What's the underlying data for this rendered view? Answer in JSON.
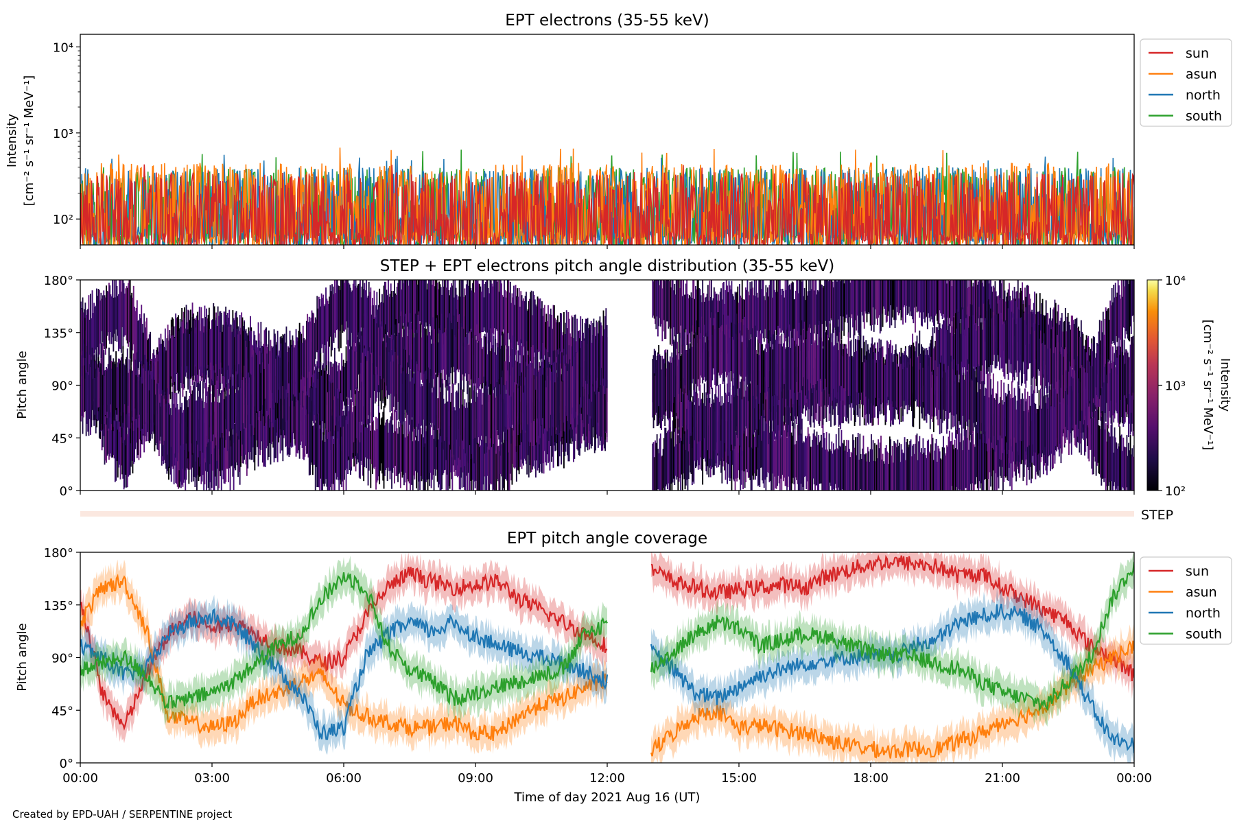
{
  "footer": "Created by EPD-UAH / SERPENTINE project",
  "colors": {
    "sun": "#d62728",
    "asun": "#ff7f0e",
    "north": "#1f77b4",
    "south": "#2ca02c",
    "step": "#fbe8e0"
  },
  "panels": {
    "intensity": {
      "title": "EPT electrons (35-55 keV)",
      "ylabel_line1": "Intensity",
      "ylabel_line2": "[cm⁻² s⁻¹ sr⁻¹ MeV⁻¹]",
      "yticks": [
        "10²",
        "10³",
        "10⁴"
      ]
    },
    "pad": {
      "title": "STEP + EPT electrons pitch angle distribution (35-55 keV)",
      "ylabel": "Pitch angle",
      "yticks": [
        "0°",
        "45°",
        "90°",
        "135°",
        "180°"
      ],
      "colorbar_label_line1": "Intensity",
      "colorbar_label_line2": "[cm⁻² s⁻¹ sr⁻¹ MeV⁻¹]",
      "colorbar_ticks": [
        "10²",
        "10³",
        "10⁴"
      ],
      "step_label": "STEP"
    },
    "coverage": {
      "title": "EPT pitch angle coverage",
      "ylabel": "Pitch angle",
      "yticks": [
        "0°",
        "45°",
        "90°",
        "135°",
        "180°"
      ],
      "xlabel": "Time of day 2021 Aug 16 (UT)"
    }
  },
  "legend": [
    "sun",
    "asun",
    "north",
    "south"
  ],
  "chart_data": [
    {
      "type": "line",
      "title": "EPT electrons (35-55 keV)",
      "ylabel": "Intensity [cm⁻² s⁻¹ sr⁻¹ MeV⁻¹]",
      "yscale": "log",
      "ylim": [
        50,
        14000
      ],
      "xlim": [
        0,
        24
      ],
      "x_unit": "hours UT 2021-08-16",
      "xticks": [
        "00:00",
        "03:00",
        "06:00",
        "09:00",
        "12:00",
        "15:00",
        "18:00",
        "21:00",
        "00:00"
      ],
      "legend_position": "outside right",
      "series": [
        {
          "name": "sun",
          "typical_range": [
            50,
            350
          ],
          "peak": 450
        },
        {
          "name": "asun",
          "typical_range": [
            50,
            450
          ],
          "peak": 680
        },
        {
          "name": "north",
          "typical_range": [
            50,
            400
          ],
          "peak": 560
        },
        {
          "name": "south",
          "typical_range": [
            50,
            400
          ],
          "peak": 650
        }
      ]
    },
    {
      "type": "heatmap",
      "title": "STEP + EPT electrons pitch angle distribution (35-55 keV)",
      "ylabel": "Pitch angle",
      "ylim": [
        0,
        180
      ],
      "xlim": [
        0,
        24
      ],
      "colorbar": {
        "scale": "log",
        "range": [
          100,
          10000
        ],
        "label": "Intensity [cm⁻² s⁻¹ sr⁻¹ MeV⁻¹]"
      },
      "data_gap_hours": [
        12.0,
        13.0
      ],
      "typical_intensity_range": [
        100,
        400
      ]
    },
    {
      "type": "line",
      "title": "EPT pitch angle coverage",
      "ylabel": "Pitch angle",
      "xlabel": "Time of day 2021 Aug 16 (UT)",
      "ylim": [
        0,
        180
      ],
      "xlim": [
        0,
        24
      ],
      "legend_position": "outside right",
      "data_gap_hours": [
        12.0,
        13.0
      ],
      "x": [
        0,
        0.5,
        1,
        1.5,
        2,
        2.5,
        3,
        3.5,
        4,
        4.5,
        5,
        5.5,
        6,
        6.5,
        7,
        7.5,
        8,
        8.5,
        9,
        9.5,
        10,
        10.5,
        11,
        11.5,
        12,
        13,
        13.5,
        14,
        14.5,
        15,
        15.5,
        16,
        16.5,
        17,
        17.5,
        18,
        18.5,
        19,
        19.5,
        20,
        20.5,
        21,
        21.5,
        22,
        22.5,
        23,
        23.5,
        24
      ],
      "series": [
        {
          "name": "sun",
          "values": [
            140,
            60,
            30,
            75,
            110,
            125,
            115,
            120,
            110,
            100,
            95,
            85,
            90,
            125,
            150,
            162,
            155,
            150,
            152,
            155,
            140,
            130,
            120,
            110,
            100,
            165,
            155,
            150,
            145,
            148,
            150,
            152,
            150,
            160,
            165,
            170,
            172,
            170,
            168,
            160,
            162,
            150,
            140,
            130,
            120,
            100,
            90,
            75
          ]
        },
        {
          "name": "asun",
          "values": [
            120,
            150,
            155,
            115,
            40,
            35,
            30,
            35,
            55,
            60,
            70,
            75,
            50,
            40,
            35,
            30,
            30,
            35,
            25,
            25,
            40,
            50,
            55,
            65,
            70,
            10,
            25,
            40,
            45,
            30,
            32,
            28,
            26,
            20,
            15,
            12,
            10,
            12,
            12,
            18,
            25,
            35,
            40,
            50,
            65,
            80,
            90,
            100
          ]
        },
        {
          "name": "north",
          "values": [
            100,
            90,
            75,
            80,
            110,
            120,
            125,
            118,
            100,
            80,
            60,
            25,
            30,
            90,
            110,
            120,
            112,
            120,
            108,
            100,
            95,
            90,
            85,
            78,
            70,
            95,
            80,
            60,
            55,
            65,
            75,
            80,
            85,
            88,
            90,
            92,
            90,
            100,
            105,
            120,
            125,
            130,
            125,
            110,
            85,
            50,
            20,
            15
          ]
        },
        {
          "name": "south",
          "values": [
            80,
            85,
            90,
            75,
            50,
            55,
            60,
            70,
            85,
            100,
            110,
            140,
            160,
            150,
            100,
            80,
            70,
            55,
            60,
            65,
            70,
            75,
            80,
            110,
            120,
            80,
            95,
            110,
            120,
            115,
            100,
            105,
            110,
            108,
            100,
            95,
            92,
            90,
            85,
            80,
            70,
            60,
            55,
            50,
            70,
            90,
            140,
            170
          ]
        }
      ]
    }
  ]
}
